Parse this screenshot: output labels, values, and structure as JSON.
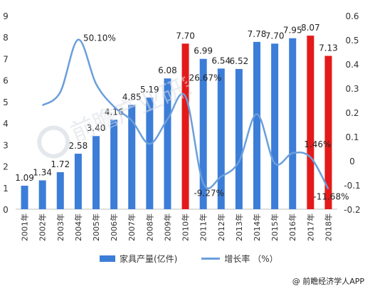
{
  "chart_data": {
    "type": "bar",
    "categories": [
      "2001年",
      "2002年",
      "2003年",
      "2004年",
      "2005年",
      "2006年",
      "2007年",
      "2008年",
      "2009年",
      "2010年",
      "2011年",
      "2012年",
      "2013年",
      "2014年",
      "2015年",
      "2016年",
      "2017年",
      "2018年"
    ],
    "series": [
      {
        "name": "家具产量(亿件)",
        "type": "bar",
        "axis": "left",
        "values": [
          1.09,
          1.34,
          1.72,
          2.58,
          3.4,
          4.16,
          4.85,
          5.19,
          6.08,
          7.7,
          6.99,
          6.54,
          6.52,
          7.78,
          7.7,
          7.95,
          8.07,
          7.13
        ],
        "labels": [
          "1.09",
          "1.34",
          "1.72",
          "2.58",
          "3.40",
          "4.16",
          "4.85",
          "5.19",
          "6.08",
          "7.70",
          "6.99",
          "6.54",
          "6.52",
          "7.78",
          "7.70",
          "7.95",
          "8.07",
          "7.13"
        ],
        "color": "#3c7dd8",
        "highlight_color": "#e41a1a",
        "highlight_categories": [
          "2010年",
          "2017年",
          "2018年"
        ]
      },
      {
        "name": "增长率 （%）",
        "type": "line",
        "axis": "right",
        "values": [
          null,
          0.229,
          0.284,
          0.501,
          0.318,
          0.224,
          0.166,
          0.07,
          0.172,
          0.2667,
          -0.0927,
          -0.065,
          -0.003,
          0.193,
          -0.01,
          0.032,
          0.0146,
          -0.1168
        ],
        "point_labels": {
          "3": "50.10%",
          "9": "26.67%",
          "10": "-9.27%",
          "16": "1.46%",
          "17": "-11.68%"
        },
        "color": "#6a9fdb"
      }
    ],
    "y_left": {
      "min": 0,
      "max": 9,
      "ticks": [
        "0",
        "1",
        "2",
        "3",
        "4",
        "5",
        "6",
        "7",
        "8",
        "9"
      ]
    },
    "y_right": {
      "min": -0.2,
      "max": 0.6,
      "ticks": [
        "-0.2",
        "-0.1",
        "0",
        "0.1",
        "0.2",
        "0.3",
        "0.4",
        "0.5",
        "0.6"
      ]
    },
    "grid": false,
    "legend_position": "bottom"
  },
  "footer": {
    "text": "@ 前瞻经济学人APP"
  },
  "colors": {
    "bar": "#3c7dd8",
    "highlight": "#e41a1a",
    "line": "#6a9fdb"
  }
}
